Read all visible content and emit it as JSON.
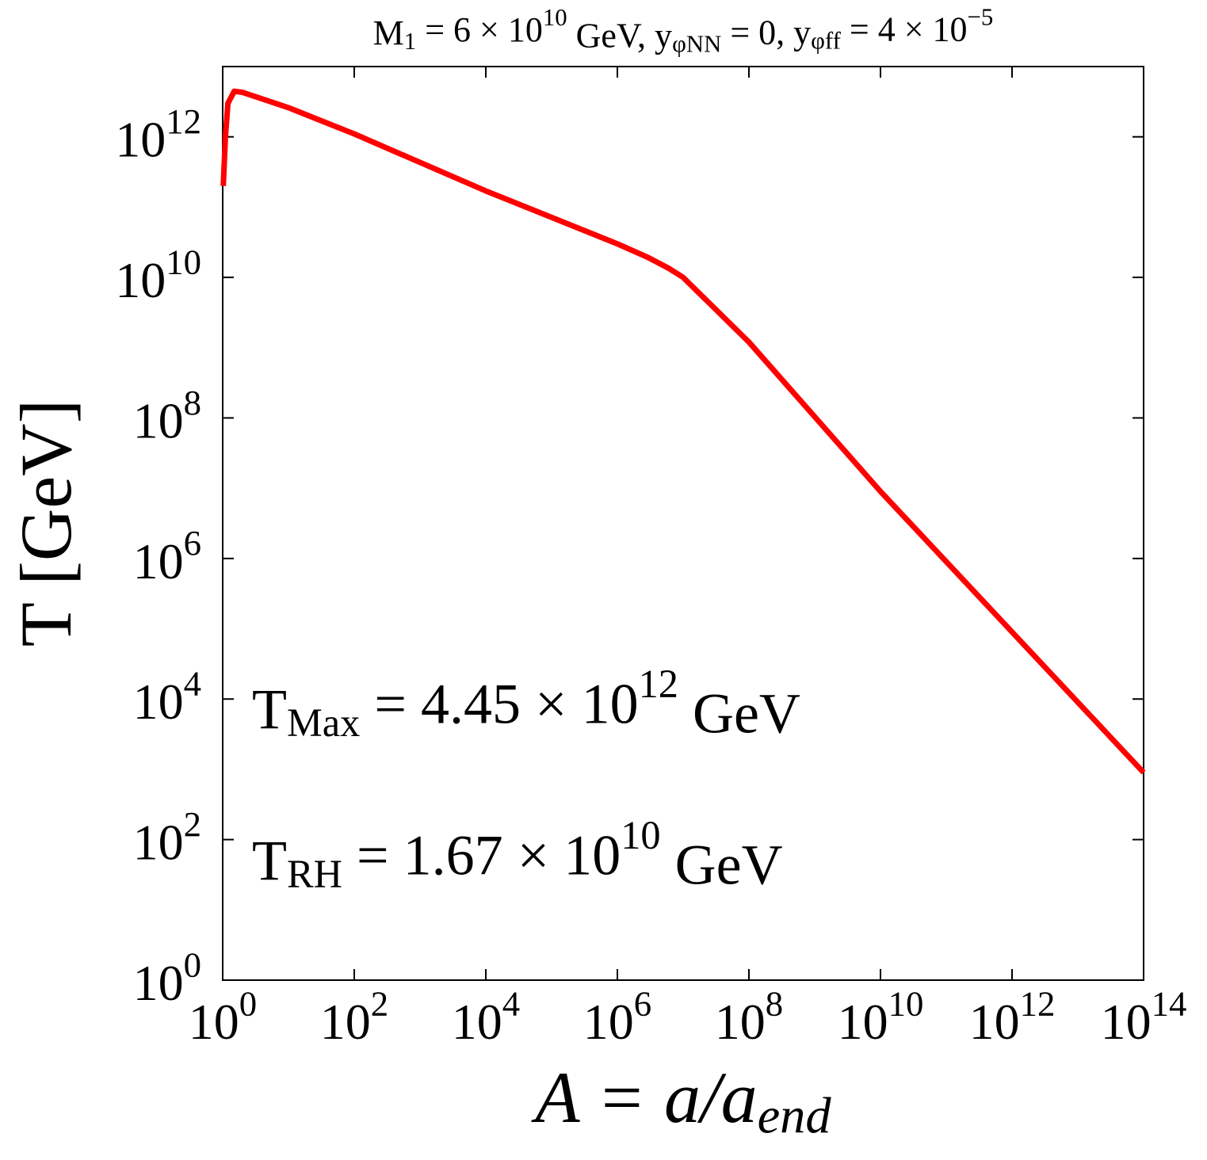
{
  "chart_data": {
    "type": "line",
    "title": "M_{1} = 6 × 10^{10} GeV, y_{φNN} = 0, y_{φff} = 4 × 10^{−5}",
    "x_label": "A = a/a_{end}",
    "y_label": "T [GeV]",
    "annotations": [
      "T_{Max} = 4.45 × 10^{12} GeV",
      "T_{RH} = 1.67 × 10^{10} GeV"
    ],
    "x_log": true,
    "y_log": true,
    "xlim": [
      1,
      100000000000000
    ],
    "ylim": [
      1,
      10000000000000
    ],
    "xticks": [
      {
        "value": 1,
        "label": "10^{0}"
      },
      {
        "value": 100,
        "label": "10^{2}"
      },
      {
        "value": 10000,
        "label": "10^{4}"
      },
      {
        "value": 1000000,
        "label": "10^{6}"
      },
      {
        "value": 100000000,
        "label": "10^{8}"
      },
      {
        "value": 10000000000,
        "label": "10^{10}"
      },
      {
        "value": 1000000000000,
        "label": "10^{12}"
      },
      {
        "value": 100000000000000,
        "label": "10^{14}"
      }
    ],
    "yticks": [
      {
        "value": 1,
        "label": "10^{0}"
      },
      {
        "value": 100,
        "label": "10^{2}"
      },
      {
        "value": 10000,
        "label": "10^{4}"
      },
      {
        "value": 1000000,
        "label": "10^{6}"
      },
      {
        "value": 100000000,
        "label": "10^{8}"
      },
      {
        "value": 10000000000,
        "label": "10^{10}"
      },
      {
        "value": 1000000000000,
        "label": "10^{12}"
      }
    ],
    "series": [
      {
        "color": "#ff0000",
        "x": [
          1.02,
          1.1,
          1.2,
          1.5,
          2,
          10,
          100,
          10000,
          1000000,
          3000000,
          6000000,
          10000000,
          100000000,
          10000000000,
          1000000000000,
          100000000000000
        ],
        "values": [
          200000000000,
          1000000000000,
          3000000000000,
          4450000000000,
          4300000000000,
          2600000000000,
          1100000000000,
          170000000000,
          30000000000,
          19000000000,
          13500000000,
          10000000000,
          1200000000,
          9000000,
          90000,
          900
        ]
      }
    ]
  }
}
